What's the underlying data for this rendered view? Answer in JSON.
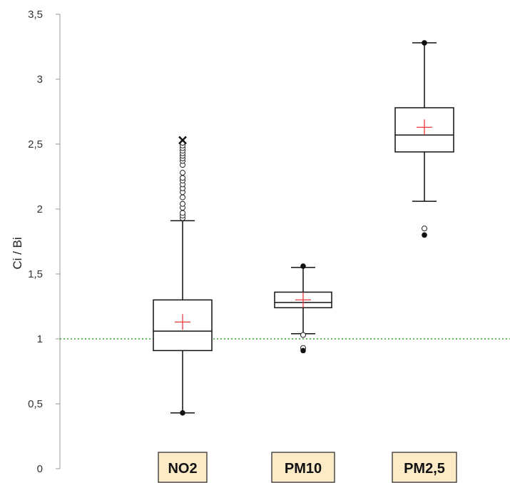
{
  "chart_data": {
    "type": "box",
    "ylabel": "Ci / Bi",
    "ylim": [
      0,
      3.5
    ],
    "yticks": [
      "0",
      "0,5",
      "1",
      "1,5",
      "2",
      "2,5",
      "3",
      "3,5"
    ],
    "ytick_values": [
      0,
      0.5,
      1,
      1.5,
      2,
      2.5,
      3,
      3.5
    ],
    "reference_line": {
      "y": 1,
      "color": "#2ca02c",
      "style": "dotted"
    },
    "mean_marker_color": "#e8383d",
    "category_label_bg": "#fdebc8",
    "categories": [
      "NO2",
      "PM10",
      "PM2,5"
    ],
    "boxes": [
      {
        "category": "NO2",
        "min": 0.43,
        "q1": 0.91,
        "median": 1.06,
        "mean": 1.13,
        "q3": 1.3,
        "max": 2.53,
        "whisker_low": 0.43,
        "whisker_high": 1.91,
        "outliers_open": [
          1.93,
          1.95,
          1.97,
          2.01,
          2.04,
          2.09,
          2.13,
          2.16,
          2.19,
          2.22,
          2.24,
          2.28,
          2.34,
          2.37,
          2.39,
          2.41,
          2.43,
          2.45,
          2.47,
          2.49,
          2.51
        ],
        "extremes_filled": [
          0.43
        ],
        "extremes_cross": [
          2.53
        ]
      },
      {
        "category": "PM10",
        "min": 0.91,
        "q1": 1.24,
        "median": 1.28,
        "mean": 1.3,
        "q3": 1.36,
        "max": 1.56,
        "whisker_low": 1.04,
        "whisker_high": 1.55,
        "outliers_open": [
          1.03,
          0.93
        ],
        "extremes_filled": [
          0.91,
          1.56
        ],
        "extremes_cross": []
      },
      {
        "category": "PM2,5",
        "min": 1.8,
        "q1": 2.44,
        "median": 2.57,
        "mean": 2.63,
        "q3": 2.78,
        "max": 3.28,
        "whisker_low": 2.06,
        "whisker_high": 3.28,
        "outliers_open": [
          1.85
        ],
        "extremes_filled": [
          1.8,
          3.28
        ],
        "extremes_cross": []
      }
    ]
  }
}
